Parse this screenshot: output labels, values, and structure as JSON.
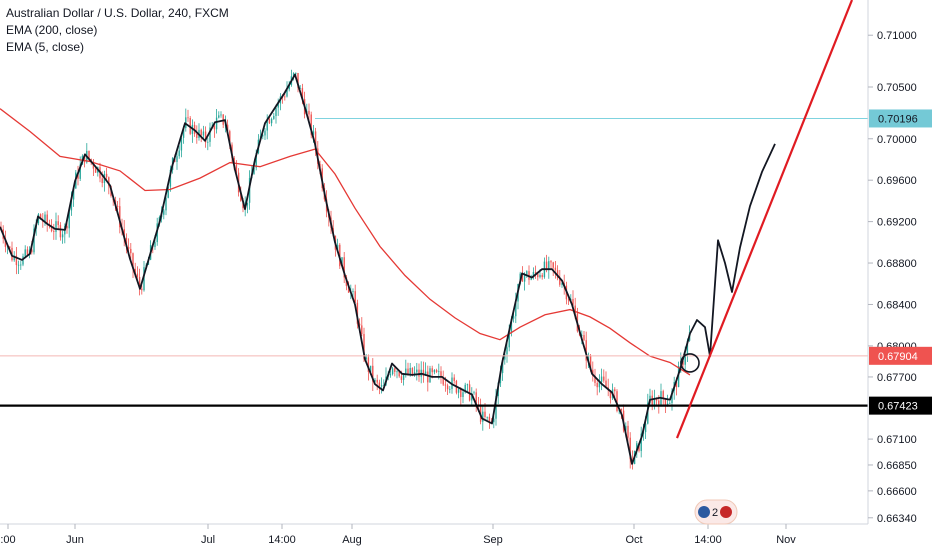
{
  "legend": {
    "symbol": "Australian Dollar / U.S. Dollar, 240, FXCM",
    "ind1": "EMA (200, close)",
    "ind2": "EMA (5, close)"
  },
  "colors": {
    "ema200": "#e53935",
    "ema5": "#131722",
    "up": "#26a69a",
    "down": "#ef5350",
    "trend": "#e01b22",
    "support": "#000000",
    "resistance": "#7fd3df",
    "price_badge": "#ef5350",
    "resistance_badge": "#74c9d6",
    "support_badge": "#000000"
  },
  "chart_data": {
    "type": "line",
    "title": "Australian Dollar / U.S. Dollar, 240, FXCM",
    "x_ticks": [
      ":00",
      "Jun",
      "Jul",
      "14:00",
      "Aug",
      "Sep",
      "Oct",
      "14:00",
      "Nov"
    ],
    "y_ticks": [
      "0.71000",
      "0.70500",
      "0.70000",
      "0.69600",
      "0.69200",
      "0.68800",
      "0.68400",
      "0.68000",
      "0.67700",
      "0.67100",
      "0.66850",
      "0.66600",
      "0.66340"
    ],
    "ylim": [
      0.6628,
      0.7134
    ],
    "price_labels": {
      "resistance": "0.70196",
      "current": "0.67904",
      "support": "0.67423"
    },
    "levels": {
      "resistance": 0.70196,
      "current": 0.67904,
      "support": 0.67423
    },
    "series": [
      {
        "name": "EMA (5, close)",
        "x_index": [
          0,
          12,
          22,
          30,
          38,
          47,
          55,
          65,
          75,
          85,
          100,
          110,
          120,
          130,
          140,
          150,
          160,
          172,
          185,
          195,
          205,
          215,
          225,
          235,
          245,
          255,
          265,
          275,
          285,
          295,
          305,
          315,
          325,
          335,
          345,
          355,
          365,
          375,
          383,
          392,
          402,
          412,
          422,
          432,
          442,
          452,
          462,
          472,
          482,
          492,
          502,
          512,
          522,
          532,
          542,
          552,
          562,
          572,
          582,
          592,
          602,
          612,
          622,
          632,
          642,
          650,
          660,
          670,
          680,
          690
        ],
        "values": [
          0.6915,
          0.6887,
          0.6883,
          0.6889,
          0.6925,
          0.6918,
          0.6913,
          0.6912,
          0.6959,
          0.6985,
          0.6968,
          0.6955,
          0.692,
          0.6884,
          0.6855,
          0.6888,
          0.6921,
          0.6973,
          0.7015,
          0.7008,
          0.6998,
          0.7016,
          0.7018,
          0.697,
          0.6932,
          0.698,
          0.7015,
          0.703,
          0.7045,
          0.7062,
          0.703,
          0.6995,
          0.6945,
          0.69,
          0.6868,
          0.684,
          0.6787,
          0.6763,
          0.6757,
          0.6783,
          0.6773,
          0.6772,
          0.6773,
          0.677,
          0.677,
          0.6763,
          0.6758,
          0.6753,
          0.673,
          0.6725,
          0.6783,
          0.6827,
          0.687,
          0.6866,
          0.6874,
          0.6874,
          0.6863,
          0.684,
          0.6806,
          0.6773,
          0.6763,
          0.6755,
          0.6733,
          0.6686,
          0.6713,
          0.6748,
          0.675,
          0.6748,
          0.6777,
          0.6812
        ]
      },
      {
        "name": "EMA (200, close)",
        "x_index": [
          0,
          30,
          60,
          90,
          120,
          145,
          170,
          200,
          230,
          260,
          290,
          315,
          335,
          355,
          380,
          405,
          430,
          455,
          480,
          500,
          520,
          545,
          570,
          590,
          610,
          630,
          650,
          670,
          690
        ],
        "values": [
          0.7029,
          0.7007,
          0.6983,
          0.6978,
          0.6969,
          0.695,
          0.6951,
          0.6962,
          0.6977,
          0.6973,
          0.6983,
          0.699,
          0.6966,
          0.6933,
          0.6896,
          0.6868,
          0.6845,
          0.6827,
          0.6812,
          0.6806,
          0.6818,
          0.683,
          0.6835,
          0.6828,
          0.6817,
          0.6803,
          0.679,
          0.6784,
          0.6772
        ]
      }
    ],
    "annotations": [
      {
        "type": "projection",
        "x_index": [
          690,
          697,
          705,
          710,
          718,
          725,
          732,
          740,
          750,
          762,
          775
        ],
        "values": [
          0.6812,
          0.6825,
          0.6818,
          0.679,
          0.6902,
          0.688,
          0.6852,
          0.6895,
          0.6935,
          0.6968,
          0.6995
        ]
      },
      {
        "type": "trendline",
        "x_index": [
          677,
          852
        ],
        "values": [
          0.6711,
          0.7134
        ]
      }
    ]
  },
  "event_badge": {
    "label": "2"
  }
}
